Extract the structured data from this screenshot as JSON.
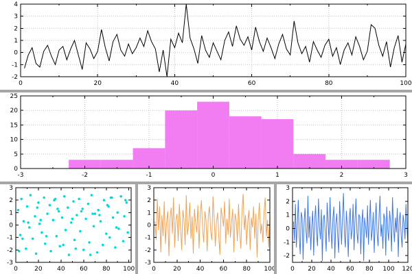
{
  "window": {
    "background": "#ffffff",
    "divider_color": "#a6a6a6"
  },
  "chart_data": [
    {
      "id": "noise-line",
      "type": "line",
      "title": "",
      "xlabel": "",
      "ylabel": "",
      "color": "#000000",
      "xlim": [
        0,
        100
      ],
      "ylim": [
        -2,
        4
      ],
      "xticks": [
        0,
        20,
        40,
        60,
        80,
        100
      ],
      "yticks": [
        -2,
        -1,
        0,
        1,
        2,
        3,
        4
      ],
      "xminor": 10,
      "grid": true,
      "x_start": 1,
      "x_step": 1,
      "values": [
        -1.3,
        -0.2,
        0.4,
        -0.9,
        -1.2,
        0.1,
        0.6,
        -0.3,
        -1.0,
        0.2,
        0.5,
        -0.6,
        0.3,
        1.0,
        -0.2,
        -1.4,
        0.8,
        0.3,
        -0.5,
        0.1,
        1.9,
        0.4,
        -0.7,
        0.9,
        1.5,
        0.2,
        -0.3,
        0.7,
        -0.1,
        0.4,
        1.2,
        0.5,
        1.8,
        0.9,
        0.3,
        -1.6,
        0.2,
        -2.0,
        1.1,
        0.4,
        1.6,
        0.8,
        4.0,
        1.2,
        0.3,
        -0.9,
        1.4,
        0.2,
        -0.4,
        0.8,
        0.1,
        -0.6,
        1.0,
        1.7,
        0.5,
        2.2,
        1.1,
        0.6,
        1.3,
        0.2,
        2.1,
        0.9,
        0.1,
        1.2,
        0.4,
        -0.5,
        0.7,
        1.5,
        0.3,
        -0.2,
        2.6,
        0.8,
        -0.1,
        0.5,
        -0.8,
        0.9,
        0.2,
        -0.4,
        0.6,
        1.1,
        -0.3,
        0.4,
        -1.0,
        0.2,
        0.8,
        -0.2,
        1.3,
        0.5,
        -0.6,
        0.1,
        2.3,
        2.0,
        0.6,
        -0.3,
        0.9,
        -1.2,
        0.4,
        1.4,
        -0.8,
        0.7
      ]
    },
    {
      "id": "histogram",
      "type": "hist",
      "title": "",
      "xlabel": "",
      "ylabel": "",
      "color": "#f27df2",
      "xlim": [
        -3,
        3
      ],
      "ylim": [
        0,
        25
      ],
      "xticks": [
        -3,
        -2,
        -1,
        0,
        1,
        2,
        3
      ],
      "yticks": [
        0,
        5,
        10,
        15,
        20,
        25
      ],
      "xminor": 0.5,
      "grid": true,
      "bin_start": -2.25,
      "bin_width": 0.5,
      "counts": [
        3,
        3,
        7,
        20,
        23,
        18,
        17,
        5,
        3,
        3
      ]
    },
    {
      "id": "scatter",
      "type": "scatter",
      "title": "",
      "xlabel": "",
      "ylabel": "",
      "color": "#00dcdc",
      "xlim": [
        0,
        102
      ],
      "ylim": [
        -3,
        3
      ],
      "xticks": [
        0,
        20,
        40,
        60,
        80,
        100
      ],
      "yticks": [
        -3,
        -2,
        -1,
        0,
        1,
        2,
        3
      ],
      "xminor": 10,
      "grid": false,
      "x": [
        2,
        4,
        5,
        7,
        9,
        10,
        12,
        13,
        15,
        17,
        18,
        20,
        21,
        23,
        25,
        26,
        28,
        30,
        31,
        33,
        34,
        36,
        38,
        39,
        41,
        43,
        44,
        46,
        47,
        49,
        51,
        52,
        54,
        56,
        57,
        59,
        60,
        62,
        64,
        65,
        67,
        69,
        70,
        72,
        73,
        75,
        77,
        78,
        80,
        82,
        83,
        85,
        86,
        88,
        90,
        91,
        93,
        95,
        96,
        98,
        3,
        11,
        19,
        27,
        35,
        42,
        50,
        58,
        66,
        74,
        81,
        89,
        97,
        6,
        22,
        37,
        53,
        68,
        84,
        99
      ],
      "y": [
        1.2,
        -0.8,
        2.1,
        0.3,
        -1.9,
        1.5,
        -0.2,
        2.4,
        -1.1,
        0.7,
        -2.3,
        1.8,
        0.1,
        -0.6,
        2.2,
        -1.5,
        0.9,
        1.6,
        -2.1,
        0.4,
        2.0,
        -0.9,
        1.1,
        -1.7,
        0.6,
        2.3,
        -0.4,
        1.4,
        -2.4,
        0.2,
        1.9,
        -1.2,
        0.8,
        2.1,
        -0.5,
        1.3,
        -2.0,
        0.5,
        1.7,
        -1.4,
        2.4,
        -0.1,
        0.9,
        -2.2,
        1.2,
        0.3,
        -1.6,
        2.0,
        -0.7,
        1.5,
        -1.0,
        2.2,
        0.6,
        -1.8,
        1.0,
        -0.3,
        2.3,
        -1.3,
        0.7,
        1.8,
        -2.1,
        0.2,
        1.4,
        -0.9,
        2.1,
        -1.6,
        0.5,
        1.1,
        -2.4,
        0.8,
        1.6,
        -0.2,
        2.0,
        -1.1,
        0.4,
        1.3,
        -1.9,
        0.9,
        2.2,
        -0.6
      ]
    },
    {
      "id": "orange-noise",
      "type": "line",
      "title": "",
      "xlabel": "",
      "ylabel": "",
      "color": "#f2a154",
      "xlim": [
        0,
        100
      ],
      "ylim": [
        -3,
        3
      ],
      "xticks": [
        0,
        20,
        40,
        60,
        80,
        100
      ],
      "yticks": [
        -3,
        -2,
        -1,
        0,
        1,
        2,
        3
      ],
      "xminor": 10,
      "grid": false,
      "x_start": 1,
      "x_step": 1,
      "values": [
        0.3,
        -1.2,
        2.1,
        -0.4,
        1.5,
        -2.2,
        0.8,
        -0.9,
        1.9,
        -1.5,
        0.2,
        1.1,
        -2.5,
        0.6,
        1.4,
        -0.7,
        2.2,
        -1.8,
        0.4,
        0.9,
        -1.3,
        1.7,
        -0.2,
        -2.0,
        1.2,
        0.5,
        -1.6,
        2.4,
        -0.8,
        0.1,
        1.8,
        -1.1,
        0.7,
        -2.3,
        1.3,
        0.2,
        -0.6,
        1.6,
        -1.9,
        0.9,
        2.0,
        -0.3,
        -1.4,
        1.1,
        0.4,
        -2.1,
        0.8,
        1.5,
        -0.5,
        -1.2,
        2.3,
        0.6,
        -1.7,
        0.3,
        1.0,
        -0.9,
        -2.4,
        1.4,
        0.7,
        -0.1,
        1.9,
        -1.5,
        0.5,
        -0.8,
        2.1,
        -1.0,
        0.2,
        1.3,
        -2.2,
        0.9,
        0.4,
        -1.3,
        1.7,
        -0.6,
        -1.9,
        1.1,
        2.5,
        -0.4,
        0.8,
        -1.6,
        0.3,
        1.2,
        -2.0,
        0.6,
        -0.2,
        1.5,
        -1.1,
        0.9,
        -2.6,
        0.5,
        1.8,
        -0.7,
        0.1,
        -1.4,
        1.0,
        2.2,
        -0.9,
        0.4,
        -1.8,
        0.7
      ]
    },
    {
      "id": "blue-noise",
      "type": "line",
      "title": "",
      "xlabel": "",
      "ylabel": "",
      "color": "#3f76e4",
      "xlim": [
        0,
        120
      ],
      "ylim": [
        -2.5,
        3
      ],
      "xticks": [
        0,
        20,
        40,
        60,
        80,
        100,
        120
      ],
      "yticks": [
        -2,
        -1,
        0,
        1,
        2,
        3
      ],
      "xminor": 10,
      "grid": false,
      "x_start": 1,
      "x_step": 1,
      "values": [
        0.5,
        -0.9,
        1.8,
        -1.4,
        0.3,
        2.1,
        -0.6,
        -1.9,
        1.2,
        0.8,
        -2.3,
        0.4,
        1.5,
        -0.2,
        -1.1,
        2.4,
        -0.7,
        0.9,
        -1.6,
        0.2,
        1.3,
        -2.0,
        0.6,
        1.7,
        -0.4,
        -1.3,
        2.2,
        0.1,
        -0.8,
        1.4,
        -2.4,
        0.7,
        1.0,
        -0.3,
        -1.7,
        1.9,
        0.5,
        -1.0,
        2.3,
        -0.1,
        -1.5,
        0.8,
        1.6,
        -2.2,
        0.3,
        1.1,
        -0.6,
        -1.8,
        2.0,
        0.4,
        -1.2,
        0.9,
        2.6,
        -0.5,
        -1.4,
        1.3,
        0.2,
        -2.1,
        0.7,
        1.5,
        -0.8,
        -0.1,
        1.8,
        -1.6,
        0.6,
        2.2,
        -0.3,
        -1.1,
        1.0,
        0.9,
        -1.9,
        0.4,
        1.4,
        -2.4,
        0.8,
        0.1,
        -0.7,
        1.7,
        -1.2,
        0.5,
        2.1,
        -0.9,
        -0.2,
        1.2,
        -1.8,
        0.6,
        1.9,
        -0.4,
        -1.3,
        0.9,
        2.4,
        -0.6,
        0.3,
        -1.5,
        1.1,
        0.7,
        -2.0,
        1.6,
        -0.1,
        -0.9,
        1.3,
        0.5,
        -1.7,
        2.3,
        0.2,
        -1.0,
        0.8,
        -0.3,
        1.5,
        -2.1,
        0.6,
        1.2,
        -0.5,
        -1.4,
        1.0,
        0.4,
        -0.8,
        1.8,
        0.1,
        -1.2
      ]
    }
  ]
}
